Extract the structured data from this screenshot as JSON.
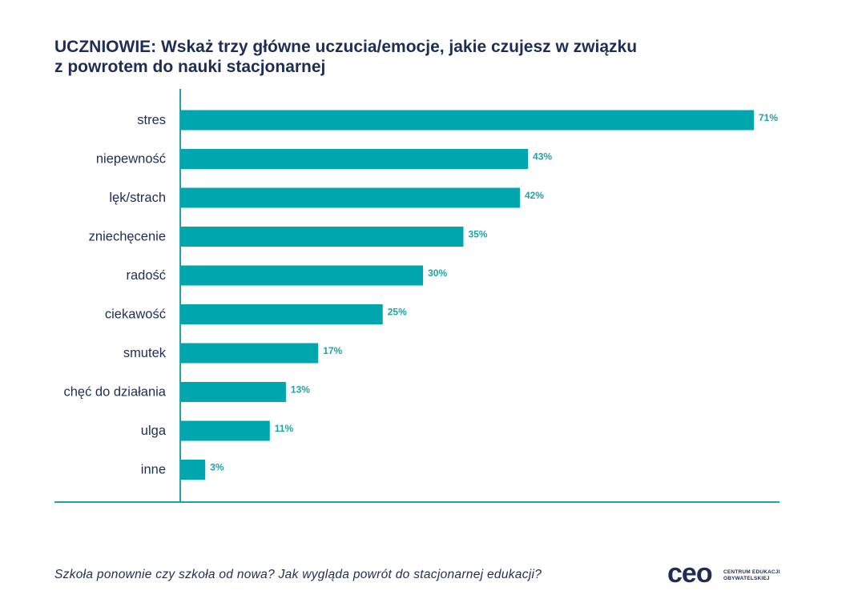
{
  "title": {
    "line1": "UCZNIOWIE: Wskaż trzy główne uczucia/emocje, jakie czujesz w związku",
    "line2": "z powrotem do nauki stacjonarnej"
  },
  "chart_data": {
    "type": "bar",
    "orientation": "horizontal",
    "categories": [
      "stres",
      "niepewność",
      "lęk/strach",
      "zniechęcenie",
      "radość",
      "ciekawość",
      "smutek",
      "chęć do działania",
      "ulga",
      "inne"
    ],
    "values": [
      71,
      43,
      42,
      35,
      30,
      25,
      17,
      13,
      11,
      3
    ],
    "value_labels": [
      "71%",
      "43%",
      "42%",
      "35%",
      "30%",
      "25%",
      "17%",
      "13%",
      "11%",
      "3%"
    ],
    "unit": "%",
    "xlim": [
      0,
      71
    ],
    "grid": false,
    "legend": "none",
    "bar_color": "#00a6ae",
    "label_color": "#1fa3a8",
    "axis_color": "#1fa3a8"
  },
  "footer": {
    "text": "Szkoła ponownie czy szkoła od nowa? Jak wygląda powrót do stacjonarnej edukacji?"
  },
  "logo": {
    "mark": "ceo",
    "line1": "CENTRUM EDUKACJI",
    "line2": "OBYWATELSKIEJ"
  }
}
